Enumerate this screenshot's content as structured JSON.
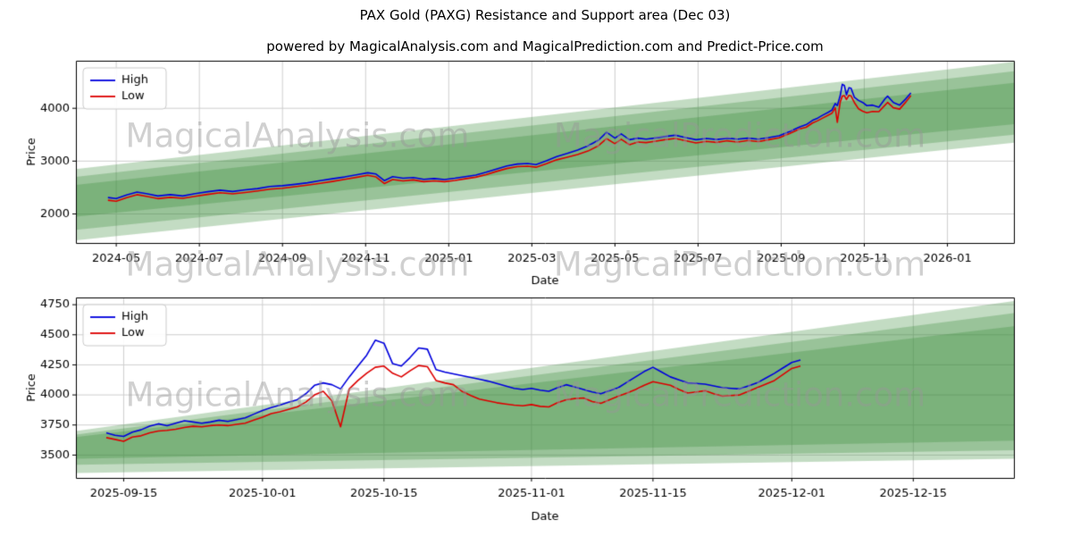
{
  "title": "PAX Gold (PAXG) Resistance and Support area (Dec 03)",
  "subtitle": "powered by MagicalAnalysis.com and MagicalPrediction.com and Predict-Price.com",
  "watermarks": {
    "left": "MagicalAnalysis.com",
    "right": "MagicalPrediction.com"
  },
  "legend": {
    "high": "High",
    "low": "Low"
  },
  "colors": {
    "high": "#0000dd",
    "low": "#dd0000",
    "band": "rgba(55,140,55,0.30)",
    "grid": "#cfcfcf",
    "text": "#000000"
  },
  "chart_data": [
    {
      "type": "line",
      "title": "",
      "xlabel": "Date",
      "ylabel": "Price",
      "x_unit": "months since 2024-05",
      "grid": true,
      "legend_position": "upper left",
      "xlim": [
        -0.97,
        21.6
      ],
      "ylim": [
        1450,
        4900
      ],
      "xticks": [
        {
          "v": 0,
          "label": "2024-05"
        },
        {
          "v": 2,
          "label": "2024-07"
        },
        {
          "v": 4,
          "label": "2024-09"
        },
        {
          "v": 6,
          "label": "2024-11"
        },
        {
          "v": 8,
          "label": "2025-01"
        },
        {
          "v": 10,
          "label": "2025-03"
        },
        {
          "v": 12,
          "label": "2025-05"
        },
        {
          "v": 14,
          "label": "2025-07"
        },
        {
          "v": 16,
          "label": "2025-09"
        },
        {
          "v": 18,
          "label": "2025-11"
        },
        {
          "v": 20,
          "label": "2026-01"
        }
      ],
      "yticks": [
        {
          "v": 2000,
          "label": "2000"
        },
        {
          "v": 3000,
          "label": "3000"
        },
        {
          "v": 4000,
          "label": "4000"
        }
      ],
      "series": [
        {
          "name": "High",
          "color": "high"
        },
        {
          "name": "Low",
          "color": "low"
        }
      ],
      "points": [
        [
          -0.2,
          2310,
          2260
        ],
        [
          0,
          2290,
          2240
        ],
        [
          0.25,
          2360,
          2310
        ],
        [
          0.5,
          2415,
          2365
        ],
        [
          0.75,
          2380,
          2330
        ],
        [
          1,
          2340,
          2290
        ],
        [
          1.3,
          2365,
          2315
        ],
        [
          1.6,
          2340,
          2295
        ],
        [
          1.9,
          2385,
          2335
        ],
        [
          2.2,
          2420,
          2370
        ],
        [
          2.5,
          2450,
          2400
        ],
        [
          2.8,
          2425,
          2380
        ],
        [
          3.1,
          2455,
          2405
        ],
        [
          3.4,
          2480,
          2435
        ],
        [
          3.7,
          2520,
          2470
        ],
        [
          4,
          2535,
          2485
        ],
        [
          4.3,
          2560,
          2515
        ],
        [
          4.6,
          2590,
          2545
        ],
        [
          4.9,
          2630,
          2580
        ],
        [
          5.2,
          2665,
          2615
        ],
        [
          5.5,
          2700,
          2655
        ],
        [
          5.8,
          2745,
          2695
        ],
        [
          6.05,
          2780,
          2730
        ],
        [
          6.25,
          2755,
          2700
        ],
        [
          6.45,
          2630,
          2575
        ],
        [
          6.65,
          2705,
          2650
        ],
        [
          6.9,
          2675,
          2625
        ],
        [
          7.15,
          2690,
          2645
        ],
        [
          7.4,
          2655,
          2610
        ],
        [
          7.65,
          2670,
          2625
        ],
        [
          7.9,
          2650,
          2610
        ],
        [
          8.15,
          2675,
          2635
        ],
        [
          8.4,
          2705,
          2665
        ],
        [
          8.65,
          2735,
          2695
        ],
        [
          8.9,
          2790,
          2745
        ],
        [
          9.15,
          2850,
          2805
        ],
        [
          9.4,
          2910,
          2860
        ],
        [
          9.65,
          2945,
          2895
        ],
        [
          9.9,
          2955,
          2905
        ],
        [
          10.1,
          2935,
          2885
        ],
        [
          10.35,
          3005,
          2950
        ],
        [
          10.6,
          3085,
          3025
        ],
        [
          10.85,
          3145,
          3075
        ],
        [
          11.1,
          3210,
          3125
        ],
        [
          11.35,
          3290,
          3190
        ],
        [
          11.6,
          3395,
          3290
        ],
        [
          11.8,
          3545,
          3425
        ],
        [
          12,
          3435,
          3330
        ],
        [
          12.15,
          3515,
          3415
        ],
        [
          12.35,
          3405,
          3310
        ],
        [
          12.55,
          3435,
          3360
        ],
        [
          12.75,
          3415,
          3350
        ],
        [
          12.95,
          3435,
          3375
        ],
        [
          13.2,
          3465,
          3405
        ],
        [
          13.45,
          3490,
          3430
        ],
        [
          13.7,
          3445,
          3385
        ],
        [
          13.95,
          3405,
          3345
        ],
        [
          14.2,
          3430,
          3375
        ],
        [
          14.45,
          3410,
          3355
        ],
        [
          14.7,
          3435,
          3385
        ],
        [
          14.95,
          3415,
          3360
        ],
        [
          15.2,
          3435,
          3390
        ],
        [
          15.45,
          3415,
          3370
        ],
        [
          15.7,
          3445,
          3405
        ],
        [
          15.95,
          3480,
          3440
        ],
        [
          16.2,
          3560,
          3520
        ],
        [
          16.45,
          3650,
          3610
        ],
        [
          16.6,
          3690,
          3640
        ],
        [
          16.75,
          3770,
          3720
        ],
        [
          16.88,
          3815,
          3765
        ],
        [
          17,
          3870,
          3815
        ],
        [
          17.12,
          3920,
          3865
        ],
        [
          17.22,
          3965,
          3905
        ],
        [
          17.3,
          4090,
          4010
        ],
        [
          17.35,
          4050,
          3735
        ],
        [
          17.42,
          4240,
          4120
        ],
        [
          17.47,
          4455,
          4230
        ],
        [
          17.52,
          4430,
          4240
        ],
        [
          17.57,
          4255,
          4165
        ],
        [
          17.63,
          4390,
          4245
        ],
        [
          17.68,
          4380,
          4235
        ],
        [
          17.76,
          4210,
          4110
        ],
        [
          17.86,
          4150,
          3990
        ],
        [
          17.96,
          4110,
          3945
        ],
        [
          18.06,
          4050,
          3915
        ],
        [
          18.2,
          4060,
          3940
        ],
        [
          18.35,
          4020,
          3935
        ],
        [
          18.5,
          4180,
          4060
        ],
        [
          18.56,
          4230,
          4110
        ],
        [
          18.7,
          4110,
          4010
        ],
        [
          18.85,
          4060,
          3985
        ],
        [
          19,
          4180,
          4120
        ],
        [
          19.12,
          4290,
          4240
        ]
      ],
      "bands": [
        {
          "x": [
            -0.97,
            21.6
          ],
          "top": [
            2850,
            4880
          ],
          "bottom": [
            1500,
            3350
          ]
        },
        {
          "x": [
            -0.97,
            21.6
          ],
          "top": [
            2700,
            4700
          ],
          "bottom": [
            1700,
            3500
          ]
        },
        {
          "x": [
            -0.97,
            21.6
          ],
          "top": [
            2550,
            4480
          ],
          "bottom": [
            1950,
            3700
          ]
        }
      ]
    },
    {
      "type": "line",
      "title": "",
      "xlabel": "Date",
      "ylabel": "Price",
      "x_unit": "days since 2025-09-15",
      "grid": true,
      "legend_position": "upper left",
      "xlim": [
        -5.5,
        102.6
      ],
      "ylim": [
        3310,
        4810
      ],
      "xticks": [
        {
          "v": 0,
          "label": "2025-09-15"
        },
        {
          "v": 16,
          "label": "2025-10-01"
        },
        {
          "v": 30,
          "label": "2025-10-15"
        },
        {
          "v": 47,
          "label": "2025-11-01"
        },
        {
          "v": 61,
          "label": "2025-11-15"
        },
        {
          "v": 77,
          "label": "2025-12-01"
        },
        {
          "v": 91,
          "label": "2025-12-15"
        }
      ],
      "yticks": [
        {
          "v": 3500,
          "label": "3500"
        },
        {
          "v": 3750,
          "label": "3750"
        },
        {
          "v": 4000,
          "label": "4000"
        },
        {
          "v": 4250,
          "label": "4250"
        },
        {
          "v": 4500,
          "label": "4500"
        },
        {
          "v": 4750,
          "label": "4750"
        }
      ],
      "series": [
        {
          "name": "High",
          "color": "high"
        },
        {
          "name": "Low",
          "color": "low"
        }
      ],
      "points": [
        [
          -2,
          3685,
          3645
        ],
        [
          -1,
          3665,
          3630
        ],
        [
          0,
          3655,
          3615
        ],
        [
          1,
          3690,
          3650
        ],
        [
          2,
          3710,
          3660
        ],
        [
          3,
          3740,
          3685
        ],
        [
          4,
          3760,
          3700
        ],
        [
          5,
          3745,
          3705
        ],
        [
          6,
          3765,
          3715
        ],
        [
          7,
          3785,
          3730
        ],
        [
          8,
          3775,
          3740
        ],
        [
          9,
          3765,
          3735
        ],
        [
          10,
          3775,
          3745
        ],
        [
          11,
          3790,
          3750
        ],
        [
          12,
          3780,
          3745
        ],
        [
          13,
          3795,
          3755
        ],
        [
          14,
          3810,
          3765
        ],
        [
          15,
          3840,
          3790
        ],
        [
          16,
          3870,
          3815
        ],
        [
          17,
          3895,
          3845
        ],
        [
          18,
          3915,
          3860
        ],
        [
          19,
          3940,
          3880
        ],
        [
          20,
          3960,
          3900
        ],
        [
          21,
          4010,
          3940
        ],
        [
          22,
          4080,
          4000
        ],
        [
          23,
          4100,
          4030
        ],
        [
          24,
          4085,
          3950
        ],
        [
          25,
          4050,
          3735
        ],
        [
          26,
          4150,
          4050
        ],
        [
          27,
          4240,
          4120
        ],
        [
          28,
          4330,
          4180
        ],
        [
          29,
          4455,
          4230
        ],
        [
          30,
          4430,
          4240
        ],
        [
          31,
          4260,
          4180
        ],
        [
          32,
          4240,
          4150
        ],
        [
          33,
          4310,
          4200
        ],
        [
          34,
          4390,
          4245
        ],
        [
          35,
          4380,
          4235
        ],
        [
          36,
          4210,
          4120
        ],
        [
          37,
          4190,
          4100
        ],
        [
          38,
          4175,
          4085
        ],
        [
          39,
          4160,
          4030
        ],
        [
          40,
          4145,
          3995
        ],
        [
          41,
          4130,
          3965
        ],
        [
          42,
          4115,
          3950
        ],
        [
          43,
          4095,
          3935
        ],
        [
          44,
          4075,
          3925
        ],
        [
          45,
          4055,
          3915
        ],
        [
          46,
          4045,
          3910
        ],
        [
          47,
          4055,
          3920
        ],
        [
          48,
          4040,
          3905
        ],
        [
          49,
          4030,
          3900
        ],
        [
          50,
          4060,
          3935
        ],
        [
          51,
          4085,
          3960
        ],
        [
          52,
          4065,
          3970
        ],
        [
          53,
          4045,
          3975
        ],
        [
          54,
          4025,
          3945
        ],
        [
          55,
          4010,
          3930
        ],
        [
          56,
          4035,
          3960
        ],
        [
          57,
          4060,
          3990
        ],
        [
          58,
          4105,
          4015
        ],
        [
          59,
          4150,
          4045
        ],
        [
          60,
          4195,
          4080
        ],
        [
          61,
          4230,
          4110
        ],
        [
          62,
          4190,
          4095
        ],
        [
          63,
          4150,
          4080
        ],
        [
          64,
          4125,
          4045
        ],
        [
          65,
          4100,
          4015
        ],
        [
          66,
          4095,
          4025
        ],
        [
          67,
          4090,
          4035
        ],
        [
          68,
          4075,
          4010
        ],
        [
          69,
          4060,
          3990
        ],
        [
          70,
          4055,
          3995
        ],
        [
          71,
          4050,
          4000
        ],
        [
          72,
          4075,
          4030
        ],
        [
          73,
          4100,
          4060
        ],
        [
          74,
          4140,
          4090
        ],
        [
          75,
          4180,
          4120
        ],
        [
          76,
          4225,
          4170
        ],
        [
          77,
          4270,
          4220
        ],
        [
          78,
          4290,
          4240
        ]
      ],
      "bands": [
        {
          "x": [
            -5.5,
            102.6
          ],
          "top": [
            3700,
            4780
          ],
          "bottom": [
            3350,
            3470
          ]
        },
        {
          "x": [
            -5.5,
            102.6
          ],
          "top": [
            3670,
            4680
          ],
          "bottom": [
            3420,
            3540
          ]
        },
        {
          "x": [
            -5.5,
            102.6
          ],
          "top": [
            3650,
            4570
          ],
          "bottom": [
            3470,
            3620
          ]
        }
      ]
    }
  ]
}
